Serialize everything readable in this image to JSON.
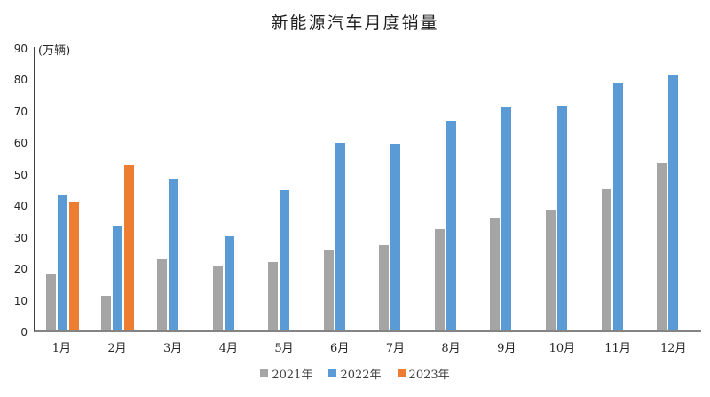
{
  "page": {
    "background": "#ffffff"
  },
  "chart_data": {
    "type": "bar",
    "title": "新能源汽车月度销量",
    "unit_label": "(万辆)",
    "categories": [
      "1月",
      "2月",
      "3月",
      "4月",
      "5月",
      "6月",
      "7月",
      "8月",
      "9月",
      "10月",
      "11月",
      "12月"
    ],
    "series": [
      {
        "name": "2021年",
        "color": "#A5A5A5",
        "values": [
          17.9,
          11.0,
          22.6,
          20.6,
          21.7,
          25.6,
          27.1,
          32.1,
          35.7,
          38.3,
          45.0,
          53.1
        ]
      },
      {
        "name": "2022年",
        "color": "#5B9BD5",
        "values": [
          43.1,
          33.4,
          48.4,
          29.9,
          44.7,
          59.6,
          59.3,
          66.6,
          70.8,
          71.4,
          78.6,
          81.4
        ]
      },
      {
        "name": "2023年",
        "color": "#ED7D31",
        "values": [
          40.8,
          52.5,
          null,
          null,
          null,
          null,
          null,
          null,
          null,
          null,
          null,
          null
        ]
      }
    ],
    "ylim": [
      0,
      90
    ],
    "ytick_step": 10,
    "grid": false,
    "legend_position": "bottom-center",
    "axis_color": "#848484",
    "yaxis_line_color": "#404040",
    "text_color": "#262626"
  }
}
